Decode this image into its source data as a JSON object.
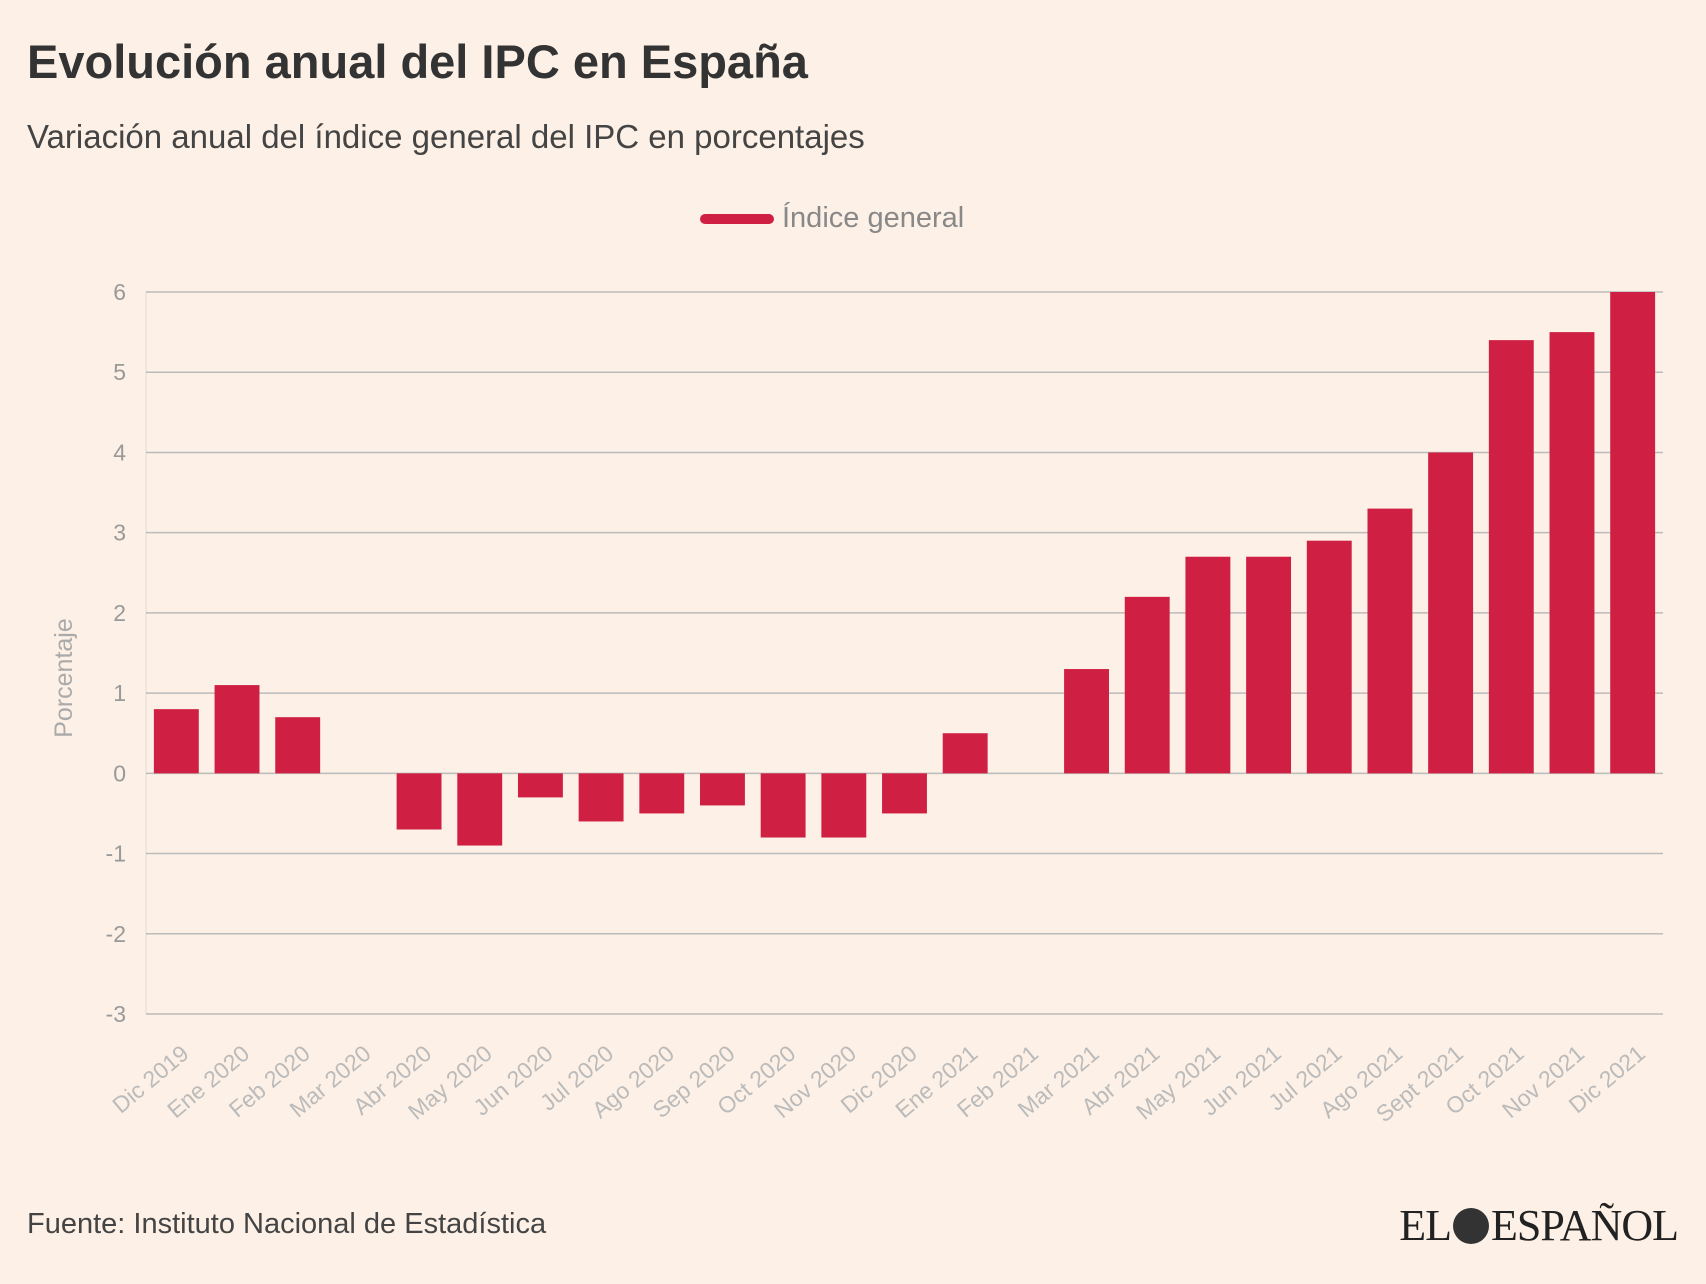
{
  "chart_data": {
    "type": "bar",
    "title": "Evolución anual del IPC en España",
    "subtitle": "Variación anual del índice general del IPC en porcentajes",
    "xlabel": "",
    "ylabel": "Porcentaje",
    "ylim": [
      -3,
      6
    ],
    "yticks": [
      6,
      5,
      4,
      3,
      2,
      1,
      0,
      -1,
      -2,
      -3
    ],
    "grid": true,
    "legend_placement": "top-center",
    "categories": [
      "Dic 2019",
      "Ene 2020",
      "Feb 2020",
      "Mar 2020",
      "Abr 2020",
      "May 2020",
      "Jun 2020",
      "Jul 2020",
      "Ago 2020",
      "Sep 2020",
      "Oct 2020",
      "Nov 2020",
      "Dic 2020",
      "Ene 2021",
      "Feb 2021",
      "Mar 2021",
      "Abr 2021",
      "May 2021",
      "Jun 2021",
      "Jul 2021",
      "Ago 2021",
      "Sept 2021",
      "Oct 2021",
      "Nov 2021",
      "Dic 2021"
    ],
    "series": [
      {
        "name": "Índice general",
        "color": "#cf2043",
        "values": [
          0.8,
          1.1,
          0.7,
          0,
          -0.7,
          -0.9,
          -0.3,
          -0.6,
          -0.5,
          -0.4,
          -0.8,
          -0.8,
          -0.5,
          0.5,
          0,
          1.3,
          2.2,
          2.7,
          2.7,
          2.9,
          3.3,
          4.0,
          5.4,
          5.5,
          6.0
        ]
      }
    ]
  },
  "footer": {
    "source": "Fuente: Instituto Nacional de Estadística",
    "logo_text": "EL ESPAÑOL",
    "logo_left": "EL",
    "logo_right": "ESPAÑOL"
  },
  "colors": {
    "background": "#fdf0e6",
    "bar": "#cf2043",
    "grid": "#bbbbbb"
  }
}
